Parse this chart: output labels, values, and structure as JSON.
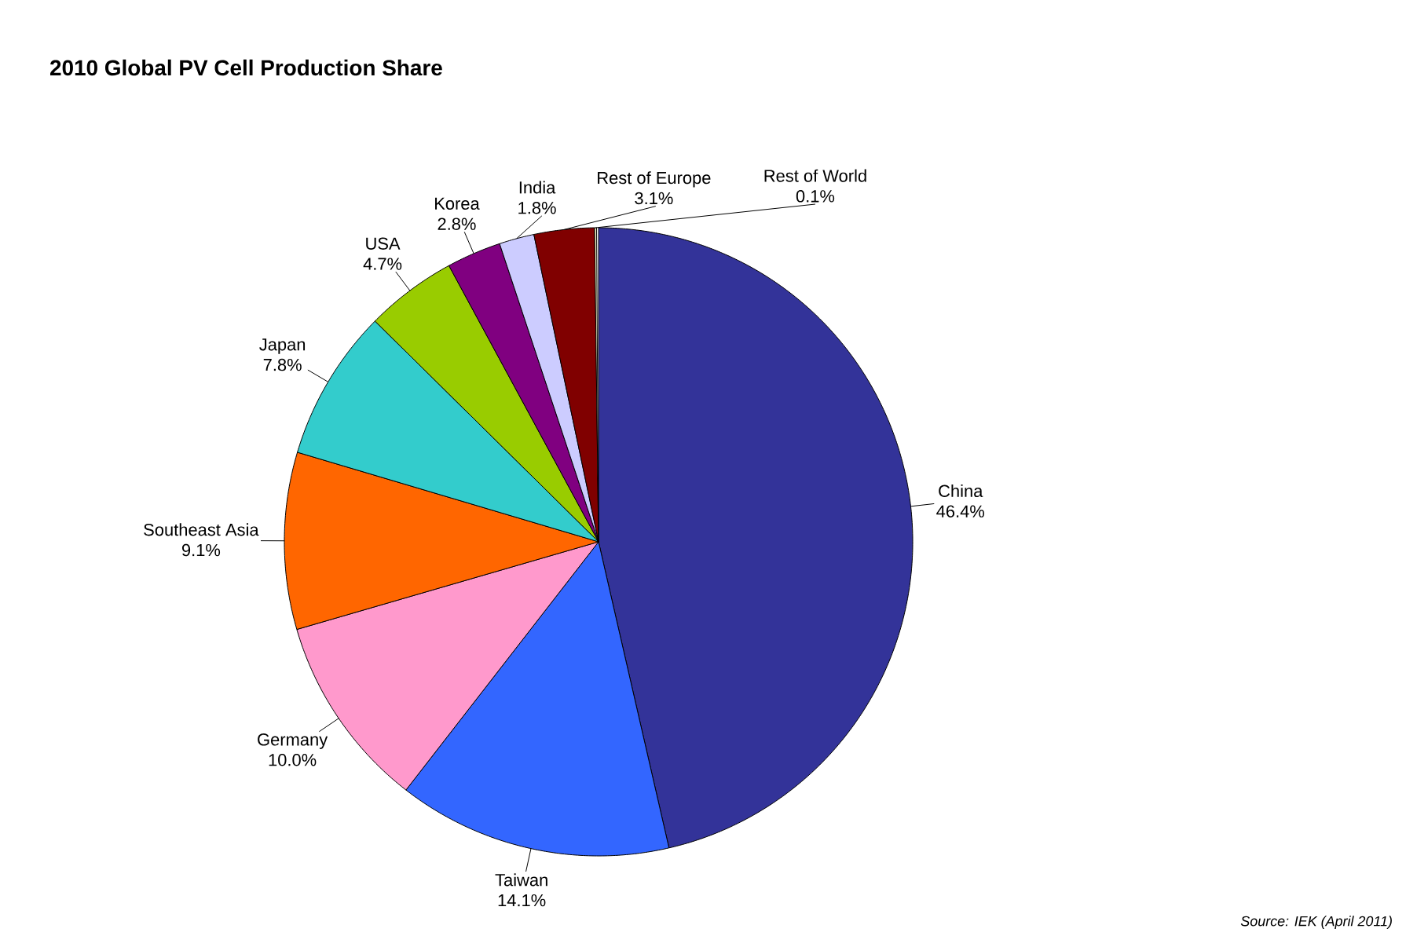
{
  "chart_data": {
    "type": "pie",
    "title": "2010 Global PV Cell Production Share",
    "categories": [
      "China",
      "Taiwan",
      "Germany",
      "Southeast Asia",
      "Japan",
      "USA",
      "Korea",
      "India",
      "Rest of Europe",
      "Rest of World"
    ],
    "values": [
      46.4,
      14.1,
      10.0,
      9.1,
      7.8,
      4.7,
      2.8,
      1.8,
      3.1,
      0.1
    ],
    "value_labels": [
      "46.4%",
      "14.1%",
      "10.0%",
      "9.1%",
      "7.8%",
      "4.7%",
      "2.8%",
      "1.8%",
      "3.1%",
      "0.1%"
    ],
    "colors": [
      "#333399",
      "#3366ff",
      "#ff99cc",
      "#ff6600",
      "#33cccc",
      "#99cc00",
      "#800080",
      "#ccccff",
      "#800000",
      "#ffffcc"
    ],
    "annotations": [
      "Source: IEK (April 2011)"
    ]
  }
}
